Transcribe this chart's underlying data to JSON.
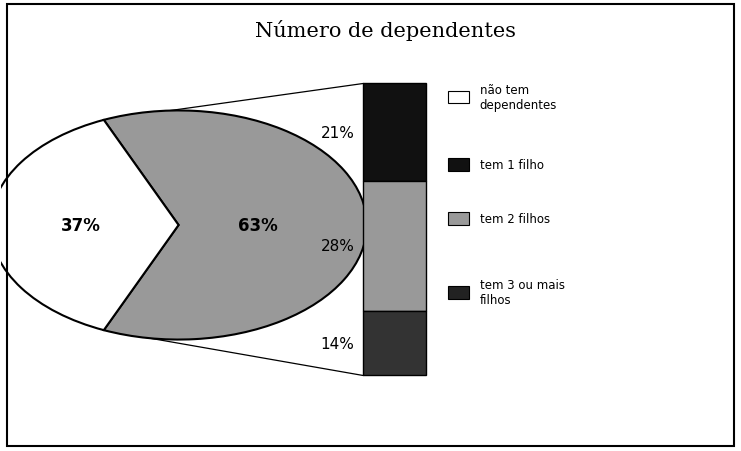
{
  "title": "Número de dependentes",
  "pie_slices": [
    37,
    63
  ],
  "pie_labels": [
    "37%",
    "63%"
  ],
  "pie_colors": [
    "#ffffff",
    "#888888"
  ],
  "bar_segments": [
    21,
    28,
    14
  ],
  "bar_labels": [
    "21%",
    "28%",
    "14%"
  ],
  "bar_colors": [
    "#111111",
    "#999999",
    "#333333"
  ],
  "legend_labels": [
    "não tem\ndependentes",
    "tem 1 filho",
    "tem 2 filhos",
    "tem 3 ou mais\nfilhos"
  ],
  "legend_colors": [
    "#ffffff",
    "#111111",
    "#999999",
    "#222222"
  ],
  "background_color": "#ffffff",
  "title_fontsize": 15
}
